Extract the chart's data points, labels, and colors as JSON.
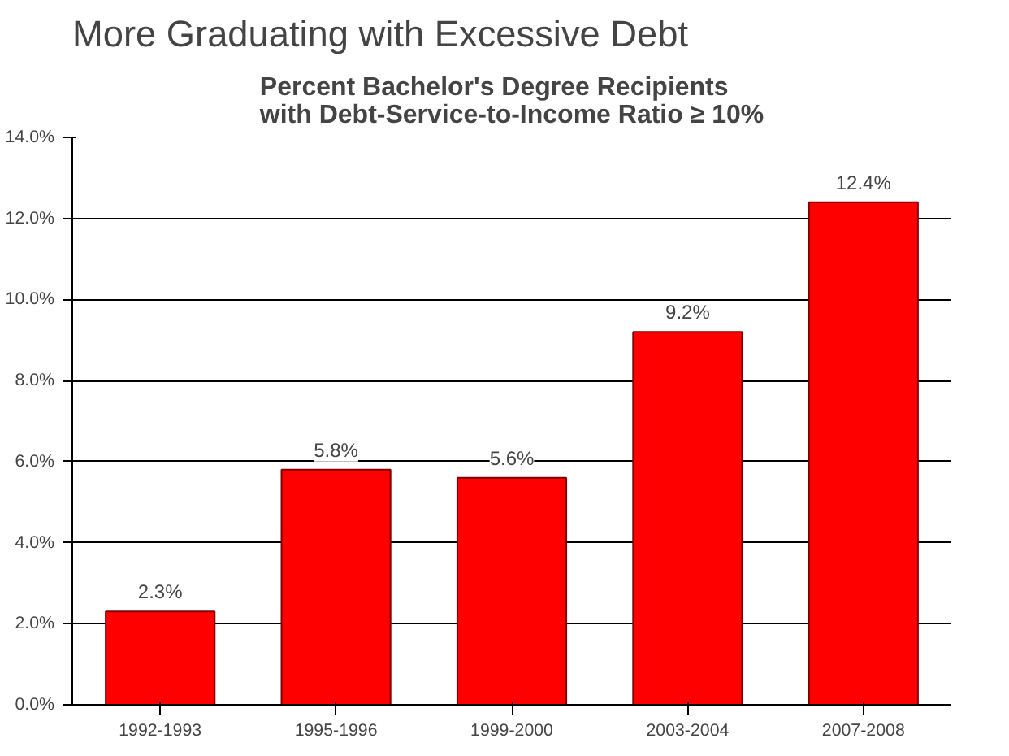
{
  "chart_data": {
    "type": "bar",
    "title": "More Graduating with Excessive Debt",
    "subtitle": "Percent Bachelor's Degree Recipients\nwith Debt-Service-to-Income Ratio ≥ 10%",
    "categories": [
      "1992-1993",
      "1995-1996",
      "1999-2000",
      "2003-2004",
      "2007-2008"
    ],
    "values": [
      2.3,
      5.8,
      5.6,
      9.2,
      12.4
    ],
    "color": "#ff0000",
    "value_labels": [
      "2.3%",
      "5.8%",
      "5.6%",
      "9.2%",
      "12.4%"
    ],
    "ylim": [
      0,
      14
    ],
    "yticks": [
      {
        "value": 0,
        "label": "0.0%"
      },
      {
        "value": 2,
        "label": "2.0%"
      },
      {
        "value": 4,
        "label": "4.0%"
      },
      {
        "value": 6,
        "label": "6.0%"
      },
      {
        "value": 8,
        "label": "8.0%"
      },
      {
        "value": 10,
        "label": "10.0%"
      },
      {
        "value": 12,
        "label": "12.0%"
      },
      {
        "value": 14,
        "label": "14.0%"
      }
    ],
    "grid": "y"
  }
}
